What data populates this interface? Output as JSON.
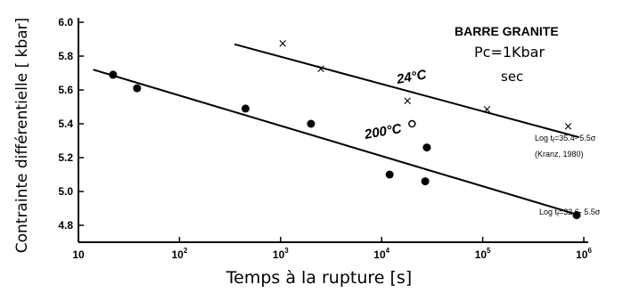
{
  "chart_data": {
    "type": "scatter",
    "title": "BARRE  GRANITE",
    "subtitle_lines": [
      "Pc=1Kbar",
      "sec"
    ],
    "xlabel": "Temps à la rupture [s]",
    "ylabel": "Contrainte différentielle [ kbar]",
    "x_scale": "log",
    "xlim": [
      10,
      1000000
    ],
    "ylim": [
      4.7,
      6.0
    ],
    "x_ticks": [
      {
        "base": "10",
        "exp": ""
      },
      {
        "base": "10",
        "exp": "2"
      },
      {
        "base": "10",
        "exp": "3"
      },
      {
        "base": "10",
        "exp": "4"
      },
      {
        "base": "10",
        "exp": "5"
      },
      {
        "base": "10",
        "exp": "6"
      }
    ],
    "y_ticks": [
      "4.8",
      "5.0",
      "5.2",
      "5.4",
      "5.6",
      "5.8",
      "6.0"
    ],
    "series": [
      {
        "name": "24°C",
        "marker": "x",
        "points": [
          [
            1050,
            5.88
          ],
          [
            2500,
            5.73
          ],
          [
            18000,
            5.54
          ],
          [
            110000,
            5.49
          ],
          [
            700000,
            5.39
          ]
        ],
        "fit": {
          "x": [
            350,
            900000
          ],
          "y": [
            5.87,
            5.32
          ],
          "equation": "Log t",
          "equation_sub": "f",
          "equation_rest": "=35.4- 5.5σ",
          "note": "(Kranz, 1980)"
        }
      },
      {
        "name": "200°C",
        "marker": "dot",
        "points": [
          [
            22,
            5.69
          ],
          [
            38,
            5.61
          ],
          [
            450,
            5.49
          ],
          [
            2000,
            5.4
          ],
          [
            12000,
            5.1
          ],
          [
            28000,
            5.26
          ],
          [
            27000,
            5.06
          ],
          [
            850000,
            4.86
          ]
        ],
        "fit": {
          "x": [
            14,
            900000
          ],
          "y": [
            5.72,
            4.86
          ],
          "equation": "Log t",
          "equation_sub": "f",
          "equation_rest": "=32 6- 5.5σ"
        }
      }
    ],
    "extra_points": [
      {
        "marker": "open-circle",
        "x": 20000,
        "y": 5.4
      }
    ]
  }
}
